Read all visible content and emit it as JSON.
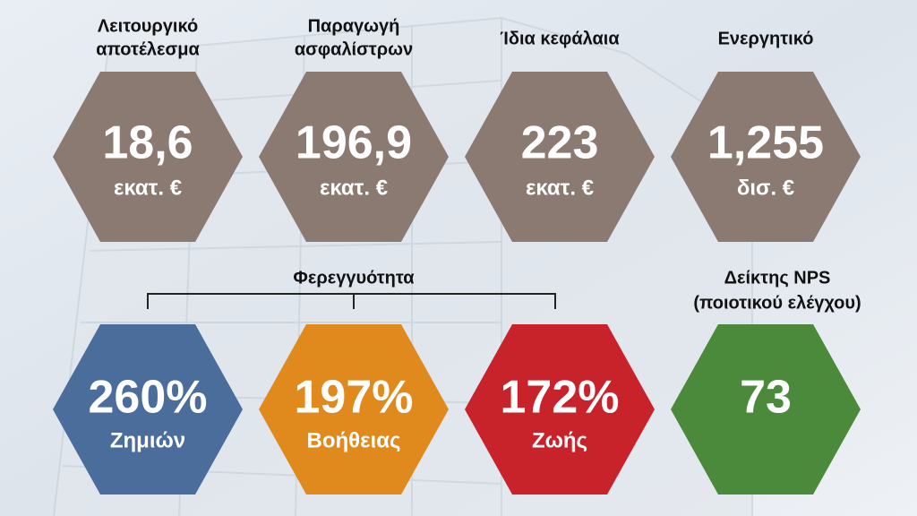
{
  "top_row": [
    {
      "label_lines": [
        "Λειτουργικό",
        "αποτέλεσμα"
      ],
      "value": "18,6",
      "unit": "εκατ. €"
    },
    {
      "label_lines": [
        "Παραγωγή",
        "ασφαλίστρων"
      ],
      "value": "196,9",
      "unit": "εκατ. €"
    },
    {
      "label_lines": [
        "Ίδια κεφάλαια"
      ],
      "value": "223",
      "unit": "εκατ. €"
    },
    {
      "label_lines": [
        "Ενεργητικό"
      ],
      "value": "1,255",
      "unit": "δισ. €"
    }
  ],
  "solvency": {
    "title": "Φερεγγυότητα",
    "items": [
      {
        "value": "260%",
        "label": "Ζημιών"
      },
      {
        "value": "197%",
        "label": "Βοήθειας"
      },
      {
        "value": "172%",
        "label": "Ζωής"
      }
    ]
  },
  "nps": {
    "title_lines": [
      "Δείκτης NPS",
      "(ποιοτικού ελέγχου)"
    ],
    "value": "73"
  }
}
